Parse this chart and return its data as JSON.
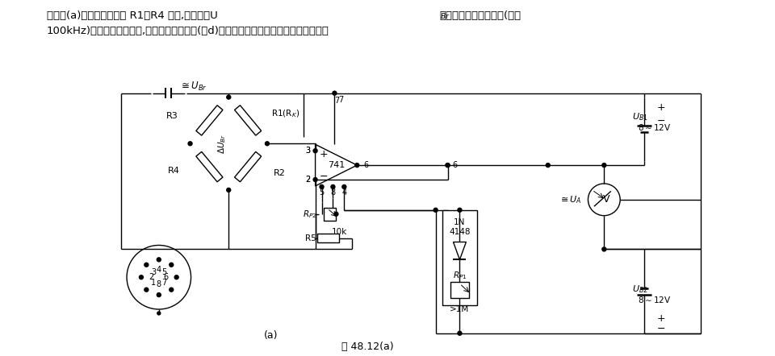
{
  "bg_color": "#ffffff",
  "line_color": "#000000",
  "fig_width": 9.6,
  "fig_height": 4.42,
  "title1": "该电路(a)中测量桥由电阻 R1～R4 组成,输出电压Uᴬᵣ可以是直流或交流电压(最高",
  "title2": "100kHz)。如果是交流电压,则可采用电容耦合(图d)。在这两种情况下都可以采用有高欧姆",
  "caption": "图 48.12(a)"
}
